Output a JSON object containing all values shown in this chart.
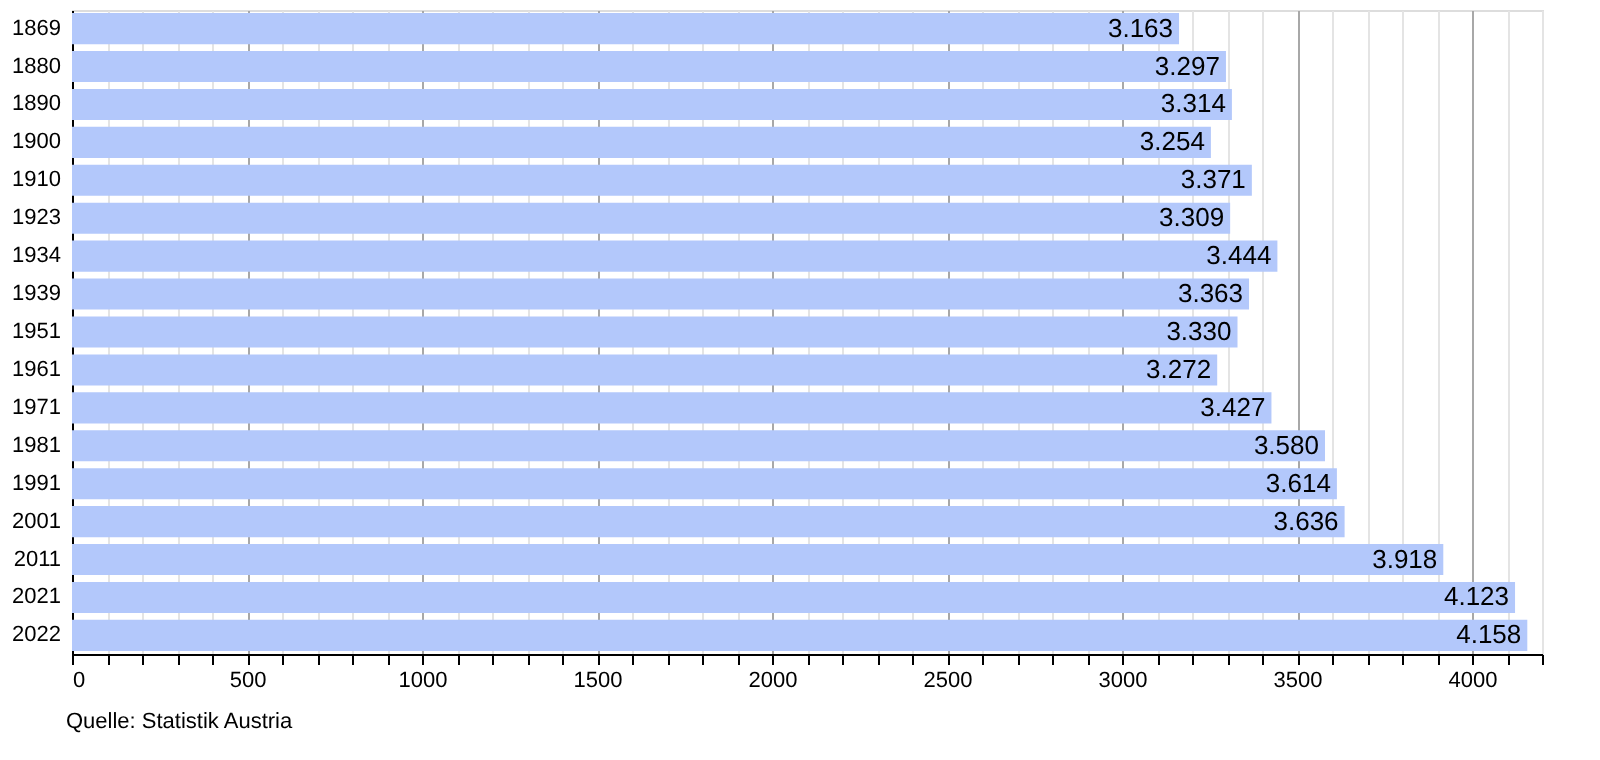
{
  "chart_data": {
    "type": "bar",
    "orientation": "horizontal",
    "categories": [
      "1869",
      "1880",
      "1890",
      "1900",
      "1910",
      "1923",
      "1934",
      "1939",
      "1951",
      "1961",
      "1971",
      "1981",
      "1991",
      "2001",
      "2011",
      "2021",
      "2022"
    ],
    "values": [
      3163,
      3297,
      3314,
      3254,
      3371,
      3309,
      3444,
      3363,
      3330,
      3272,
      3427,
      3580,
      3614,
      3636,
      3918,
      4123,
      4158
    ],
    "value_labels": [
      "3.163",
      "3.297",
      "3.314",
      "3.254",
      "3.371",
      "3.309",
      "3.444",
      "3.363",
      "3.330",
      "3.272",
      "3.427",
      "3.580",
      "3.614",
      "3.636",
      "3.918",
      "4.123",
      "4.158"
    ],
    "color": "#b3c8fb",
    "xlim": [
      0,
      4200
    ],
    "xticks": [
      0,
      {
        "value": 100,
        "label": null
      },
      {
        "value": 200,
        "label": null
      },
      {
        "value": 300,
        "label": null
      },
      {
        "value": 400,
        "label": null
      },
      500,
      {
        "value": 600,
        "label": null
      },
      {
        "value": 700,
        "label": null
      },
      {
        "value": 800,
        "label": null
      },
      {
        "value": 900,
        "label": null
      },
      1000,
      {
        "value": 1100,
        "label": null
      },
      {
        "value": 1200,
        "label": null
      },
      {
        "value": 1300,
        "label": null
      },
      {
        "value": 1400,
        "label": null
      },
      1500,
      {
        "value": 1600,
        "label": null
      },
      {
        "value": 1700,
        "label": null
      },
      {
        "value": 1800,
        "label": null
      },
      {
        "value": 1900,
        "label": null
      },
      2000,
      {
        "value": 2100,
        "label": null
      },
      {
        "value": 2200,
        "label": null
      },
      {
        "value": 2300,
        "label": null
      },
      {
        "value": 2400,
        "label": null
      },
      2500,
      {
        "value": 2600,
        "label": null
      },
      {
        "value": 2700,
        "label": null
      },
      {
        "value": 2800,
        "label": null
      },
      {
        "value": 2900,
        "label": null
      },
      3000,
      {
        "value": 3100,
        "label": null
      },
      {
        "value": 3200,
        "label": null
      },
      {
        "value": 3300,
        "label": null
      },
      {
        "value": 3400,
        "label": null
      },
      3500,
      {
        "value": 3600,
        "label": null
      },
      {
        "value": 3700,
        "label": null
      },
      {
        "value": 3800,
        "label": null
      },
      {
        "value": 3900,
        "label": null
      },
      4000,
      {
        "value": 4100,
        "label": null
      },
      {
        "value": 4200,
        "label": null
      }
    ],
    "grid": "x",
    "annotations": [
      "Quelle: Statistik Austria"
    ]
  }
}
